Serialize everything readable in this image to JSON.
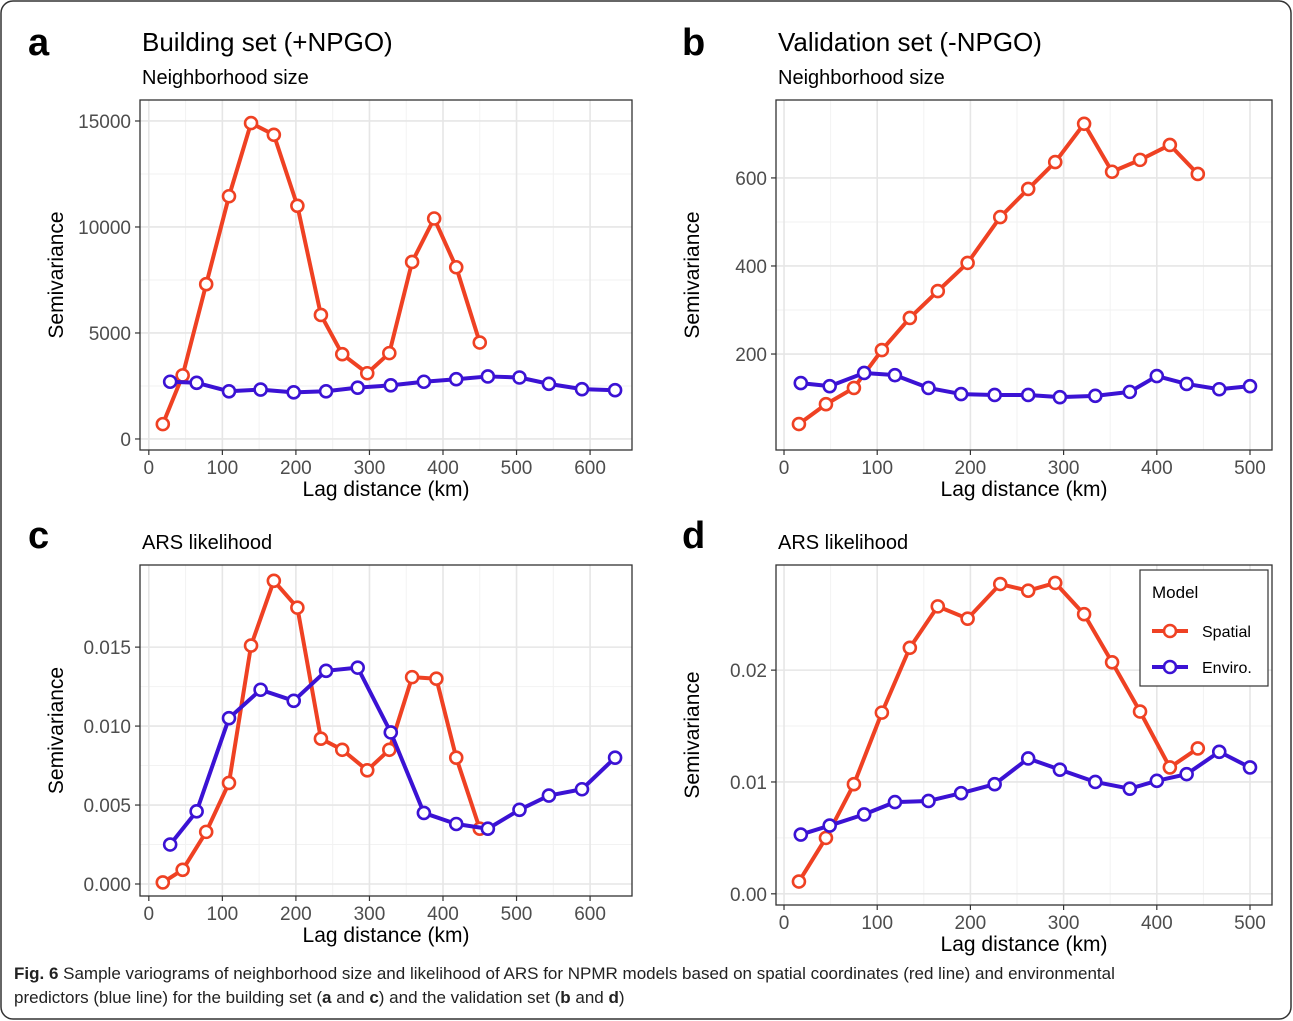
{
  "figure": {
    "caption": [
      "Fig. 6",
      " Sample variograms of neighborhood size and likelihood of ARS for NPMR models based on spatial coordinates (red line) and environmental predictors (blue line) for the building set (",
      "a",
      " and ",
      "c",
      ") and the validation set (",
      "b",
      " and ",
      "d",
      ")"
    ]
  },
  "chart_data": [
    {
      "type": "line",
      "panel": "a",
      "heading": "Building set (+NPGO)",
      "title": "Neighborhood size",
      "x_label": "Lag distance (km)",
      "y_label": "Semivariance",
      "xlim": [
        -12,
        657
      ],
      "ylim": [
        -520,
        15990
      ],
      "xticks": [
        0,
        100,
        200,
        300,
        400,
        500,
        600
      ],
      "yticks": [
        0,
        5000,
        10000,
        15000
      ],
      "grid": true,
      "series": [
        {
          "color": "#ef4123",
          "x": [
            19,
            46,
            78,
            109,
            139,
            170,
            202,
            234,
            263,
            297,
            327,
            358,
            388,
            418,
            450
          ],
          "values": [
            700,
            3000,
            7300,
            11450,
            14900,
            14350,
            11000,
            5850,
            4000,
            3100,
            4050,
            8350,
            10400,
            8100,
            4550
          ]
        },
        {
          "color": "#3b12d4",
          "x": [
            29,
            65,
            109,
            152,
            197,
            241,
            284,
            329,
            374,
            418,
            461,
            504,
            544,
            589,
            634
          ],
          "values": [
            2700,
            2650,
            2250,
            2330,
            2200,
            2250,
            2420,
            2530,
            2700,
            2820,
            2950,
            2900,
            2600,
            2350,
            2300
          ]
        }
      ]
    },
    {
      "type": "line",
      "panel": "b",
      "heading": "Validation set (-NPGO)",
      "title": "Neighborhood size",
      "x_label": "Lag distance (km)",
      "y_label": "Semivariance",
      "xlim": [
        -8.6,
        523.6
      ],
      "ylim": [
        -18,
        777
      ],
      "xticks": [
        0,
        100,
        200,
        300,
        400,
        500
      ],
      "yticks": [
        200,
        400,
        600
      ],
      "grid": true,
      "series": [
        {
          "color": "#ef4123",
          "x": [
            16,
            45,
            75,
            105,
            135,
            165,
            197,
            232,
            262,
            291,
            322,
            352,
            382,
            414,
            444
          ],
          "values": [
            41,
            86,
            123,
            209,
            282,
            343,
            407,
            511,
            575,
            636,
            723,
            614,
            641,
            675,
            609
          ]
        },
        {
          "color": "#3b12d4",
          "x": [
            18,
            49,
            86,
            119,
            155,
            190,
            226,
            262,
            296,
            334,
            371,
            400,
            432,
            467,
            500
          ],
          "values": [
            134,
            127,
            157,
            152,
            123,
            109,
            107,
            107,
            102,
            105,
            114,
            150,
            132,
            120,
            127
          ]
        }
      ]
    },
    {
      "type": "line",
      "panel": "c",
      "title": "ARS likelihood",
      "x_label": "Lag distance (km)",
      "y_label": "Semivariance",
      "xlim": [
        -12,
        657
      ],
      "ylim": [
        -0.00076,
        0.0202
      ],
      "xticks": [
        0,
        100,
        200,
        300,
        400,
        500,
        600
      ],
      "yticks": [
        {
          "value": 0,
          "label": "0.000"
        },
        0.005,
        {
          "value": 0.01,
          "label": "0.010"
        },
        0.015
      ],
      "grid": true,
      "series": [
        {
          "color": "#ef4123",
          "x": [
            19,
            46,
            78,
            109,
            139,
            170,
            202,
            234,
            263,
            297,
            327,
            358,
            391,
            418,
            450
          ],
          "values": [
            0.0001,
            0.0009,
            0.0033,
            0.0064,
            0.0151,
            0.0192,
            0.0175,
            0.0092,
            0.0085,
            0.0072,
            0.0085,
            0.0131,
            0.013,
            0.008,
            0.0035
          ]
        },
        {
          "color": "#3b12d4",
          "x": [
            29,
            65,
            109,
            152,
            197,
            241,
            284,
            329,
            374,
            418,
            461,
            504,
            544,
            589,
            634
          ],
          "values": [
            0.0025,
            0.0046,
            0.0105,
            0.0123,
            0.0116,
            0.0135,
            0.0137,
            0.0096,
            0.0045,
            0.0038,
            0.0035,
            0.0047,
            0.0056,
            0.006,
            0.008
          ]
        }
      ]
    },
    {
      "type": "line",
      "panel": "d",
      "title": "ARS likelihood",
      "x_label": "Lag distance (km)",
      "y_label": "Semivariance",
      "xlim": [
        -8.6,
        523.6
      ],
      "ylim": [
        -0.001,
        0.0294
      ],
      "xticks": [
        0,
        100,
        200,
        300,
        400,
        500
      ],
      "yticks": [
        {
          "value": 0,
          "label": "0.00"
        },
        0.01,
        0.02
      ],
      "grid": true,
      "legend": {
        "title": "Model",
        "position": "top-right"
      },
      "series": [
        {
          "name": "Spatial",
          "color": "#ef4123",
          "x": [
            16,
            45,
            75,
            105,
            135,
            165,
            197,
            232,
            262,
            291,
            322,
            352,
            382,
            414,
            444
          ],
          "values": [
            0.0011,
            0.005,
            0.0098,
            0.0162,
            0.022,
            0.0257,
            0.0246,
            0.0277,
            0.0271,
            0.0278,
            0.025,
            0.0207,
            0.0163,
            0.0113,
            0.013
          ]
        },
        {
          "name": "Enviro.",
          "color": "#3b12d4",
          "x": [
            18,
            49,
            86,
            119,
            155,
            190,
            226,
            262,
            296,
            334,
            371,
            400,
            432,
            467,
            500
          ],
          "values": [
            0.0053,
            0.0061,
            0.0071,
            0.0082,
            0.0083,
            0.009,
            0.0098,
            0.0121,
            0.0111,
            0.01,
            0.0094,
            0.0101,
            0.0107,
            0.0127,
            0.0113
          ]
        }
      ]
    }
  ]
}
